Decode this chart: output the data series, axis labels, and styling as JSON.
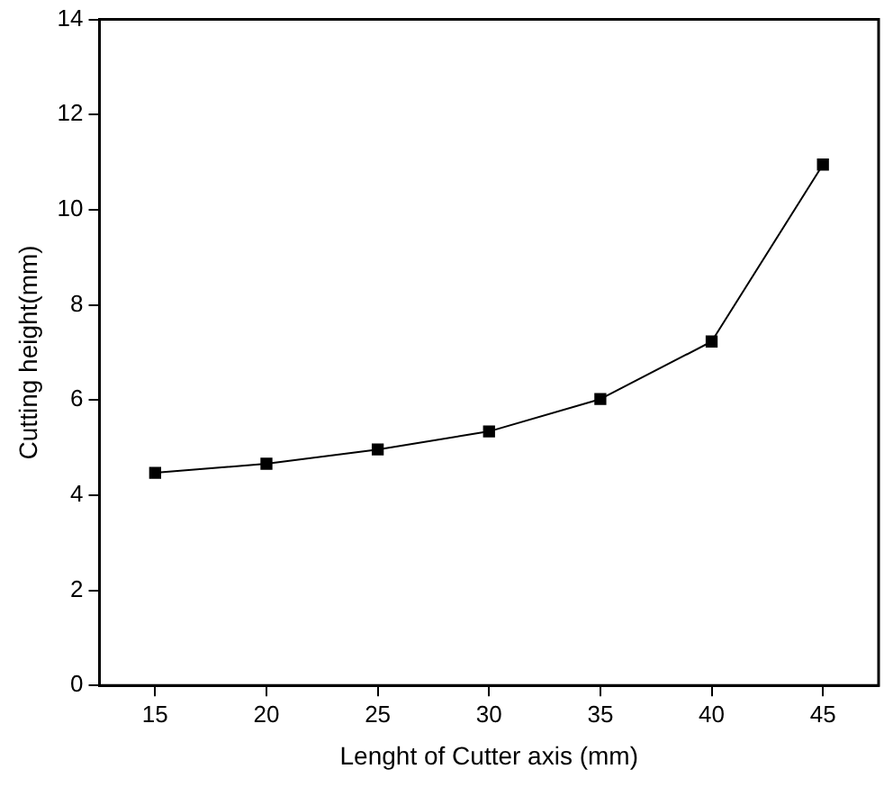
{
  "chart_data": {
    "type": "line",
    "xlabel": "Lenght of Cutter axis (mm)",
    "ylabel": "Cutting height(mm)",
    "x": [
      15,
      20,
      25,
      30,
      35,
      40,
      45
    ],
    "series": [
      {
        "color": "#000000",
        "values": [
          4.47,
          4.66,
          4.96,
          5.34,
          6.02,
          7.23,
          10.95
        ]
      }
    ],
    "xlim": [
      12.5,
      47.5
    ],
    "xticks": [
      15,
      20,
      25,
      30,
      35,
      40,
      45
    ],
    "ylim": [
      0,
      14
    ],
    "yticks": [
      0,
      2,
      4,
      6,
      8,
      10,
      12,
      14
    ],
    "marker": "square",
    "line_style": "solid",
    "grid": false,
    "legend": false
  }
}
